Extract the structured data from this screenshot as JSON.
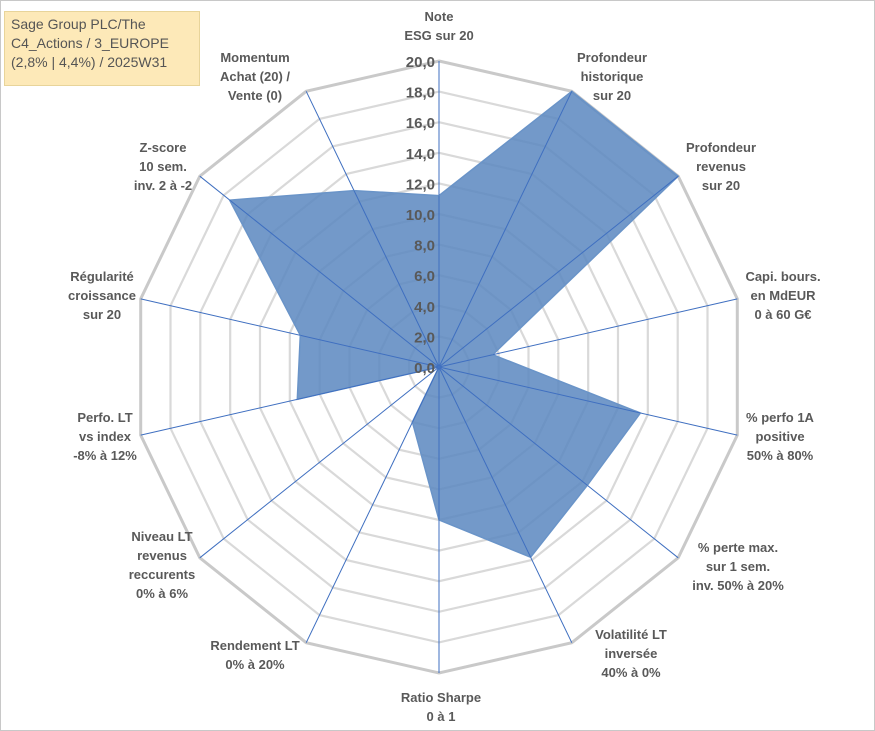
{
  "title_lines": [
    "Sage Group PLC/The",
    "C4_Actions / 3_EUROPE",
    "(2,8% | 4,4%) / 2025W31"
  ],
  "chart_data": {
    "type": "radar",
    "rmin": 0,
    "rmax": 20,
    "tick_step": 2,
    "tick_labels": [
      "0,0",
      "2,0",
      "4,0",
      "6,0",
      "8,0",
      "10,0",
      "12,0",
      "14,0",
      "16,0",
      "18,0",
      "20,0"
    ],
    "grid": true,
    "legend": "none",
    "axes": [
      {
        "label": [
          "Note",
          "ESG sur 20"
        ],
        "value": 11.2
      },
      {
        "label": [
          "Profondeur",
          "historique",
          "sur 20"
        ],
        "value": 20.0
      },
      {
        "label": [
          "Profondeur",
          "revenus",
          "sur 20"
        ],
        "value": 20.0
      },
      {
        "label": [
          "Capi. bours.",
          "en MdEUR",
          "0 à 60 G€"
        ],
        "value": 3.6
      },
      {
        "label": [
          "% perfo 1A",
          "positive",
          "50% à 80%"
        ],
        "value": 13.5
      },
      {
        "label": [
          "% perte max.",
          "sur 1 sem.",
          "inv. 50% à 20%"
        ],
        "value": 12.4
      },
      {
        "label": [
          "Volatilité LT",
          "inversée",
          "40% à 0%"
        ],
        "value": 13.8
      },
      {
        "label": [
          "Ratio Sharpe",
          "0 à 1"
        ],
        "value": 10.0
      },
      {
        "label": [
          "Rendement LT",
          "0% à 20%"
        ],
        "value": 4.0
      },
      {
        "label": [
          "Niveau LT",
          "revenus",
          "reccurents",
          "0% à 6%"
        ],
        "value": 0.0
      },
      {
        "label": [
          "Perfo. LT",
          "vs index",
          "-8% à 12%"
        ],
        "value": 9.5
      },
      {
        "label": [
          "Régularité",
          "croissance",
          "sur 20"
        ],
        "value": 9.3
      },
      {
        "label": [
          "Z-score",
          "10 sem.",
          "inv. 2 à -2"
        ],
        "value": 17.5
      },
      {
        "label": [
          "Momentum",
          "Achat (20) /",
          "Vente (0)"
        ],
        "value": 12.8
      }
    ],
    "colors": {
      "fill": "#5b87bf",
      "outline": "#6a94c8",
      "spoke": "#3f6fc0",
      "grid": "#d9d9d9"
    }
  }
}
